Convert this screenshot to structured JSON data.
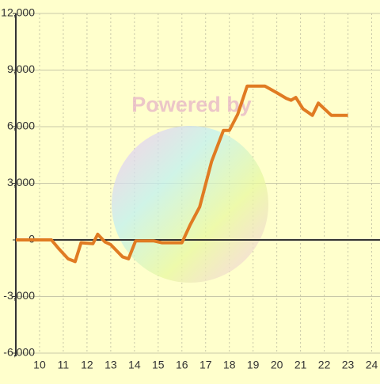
{
  "chart_data": {
    "type": "line",
    "watermark": "Powered by",
    "x": [
      9.0,
      10.5,
      10.8,
      11.2,
      11.5,
      11.75,
      12.25,
      12.45,
      12.75,
      13.0,
      13.5,
      13.75,
      14.05,
      14.8,
      15.15,
      16.0,
      16.35,
      16.75,
      17.25,
      17.75,
      18.0,
      18.35,
      18.75,
      19.5,
      20.0,
      20.4,
      20.6,
      20.8,
      21.1,
      21.5,
      21.75,
      22.0,
      22.3,
      23.0
    ],
    "series": [
      {
        "color": "#e07b22",
        "values": [
          0,
          0,
          -450,
          -1000,
          -1150,
          -150,
          -200,
          300,
          -100,
          -250,
          -900,
          -1000,
          -50,
          -50,
          -150,
          -150,
          800,
          1750,
          4150,
          5800,
          5800,
          6650,
          8150,
          8150,
          7800,
          7500,
          7400,
          7550,
          6950,
          6600,
          7250,
          6950,
          6600,
          6600
        ]
      }
    ],
    "xlim": [
      9,
      24.35
    ],
    "ylim": [
      -6000,
      12000
    ],
    "xticks": [
      10,
      11,
      12,
      13,
      14,
      15,
      16,
      17,
      18,
      19,
      20,
      21,
      22,
      23,
      24
    ],
    "yticks": [
      {
        "value": -6000,
        "label": "-6,000"
      },
      {
        "value": -3000,
        "label": "-3,000"
      },
      0,
      {
        "value": 3000,
        "label": "3,000"
      },
      {
        "value": 6000,
        "label": "6,000"
      },
      {
        "value": 9000,
        "label": "9,000"
      },
      {
        "value": 12000,
        "label": "12,000"
      }
    ],
    "grid": true
  }
}
